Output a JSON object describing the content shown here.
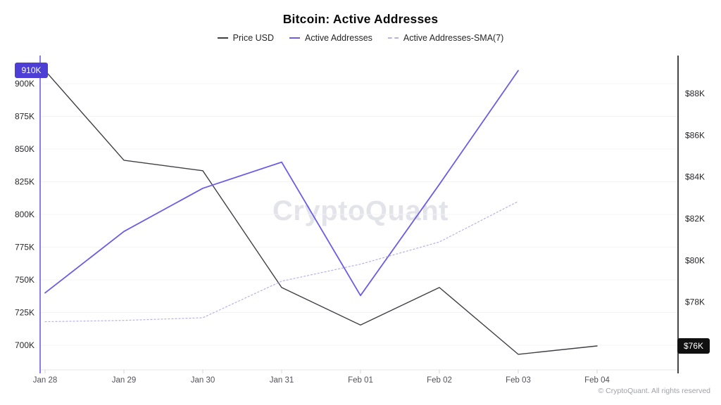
{
  "chart_data": {
    "type": "line",
    "title": "Bitcoin: Active Addresses",
    "watermark": "CryptoQuant",
    "copyright": "© CryptoQuant. All rights reserved",
    "legend_position": "top",
    "grid": true,
    "categories": [
      "Jan 28",
      "Jan 29",
      "Jan 30",
      "Jan 31",
      "Feb 01",
      "Feb 02",
      "Feb 03",
      "Feb 04"
    ],
    "left_axis": {
      "label": "Active Addresses",
      "color": "#6c5ce7",
      "tick_labels": [
        "700K",
        "725K",
        "750K",
        "775K",
        "800K",
        "825K",
        "850K",
        "875K",
        "900K"
      ],
      "tick_values": [
        700,
        725,
        750,
        775,
        800,
        825,
        850,
        875,
        900
      ],
      "badge": {
        "label": "910K",
        "value": 910,
        "bg": "#4d3fd6",
        "fg": "#ffffff"
      }
    },
    "right_axis": {
      "label": "Price USD",
      "color": "#18181b",
      "tick_labels": [
        "$78K",
        "$80K",
        "$82K",
        "$84K",
        "$86K",
        "$88K"
      ],
      "tick_values": [
        78,
        80,
        82,
        84,
        86,
        88
      ],
      "badge": {
        "label": "$76K",
        "value": 75.9,
        "bg": "#101010",
        "fg": "#ffffff"
      }
    },
    "series": [
      {
        "name": "Price USD",
        "axis": "right",
        "color": "#3f3f46",
        "line_style": "solid",
        "width": 1.4,
        "values": [
          89.1,
          84.8,
          84.3,
          78.7,
          76.9,
          78.7,
          75.5,
          75.9
        ]
      },
      {
        "name": "Active Addresses",
        "axis": "left",
        "color": "#6c5ce7",
        "line_style": "solid",
        "width": 1.8,
        "values": [
          740,
          787,
          820,
          840,
          738,
          823,
          910,
          null
        ]
      },
      {
        "name": "Active Addresses-SMA(7)",
        "axis": "left",
        "color": "#b7b1e6",
        "line_style": "dotted",
        "width": 1.2,
        "values": [
          718,
          719,
          721,
          749,
          762,
          779,
          810,
          null
        ]
      }
    ]
  }
}
